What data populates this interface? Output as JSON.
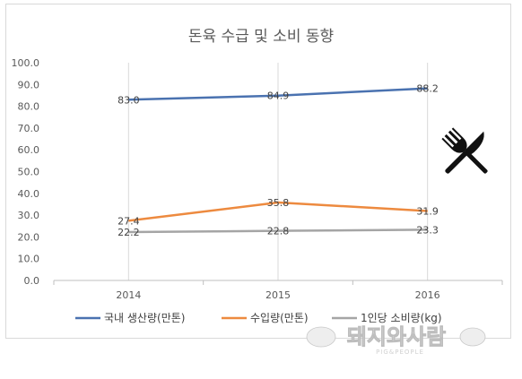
{
  "chart_data": {
    "type": "line",
    "title": "돈육 수급 및 소비 동향",
    "categories": [
      "2014",
      "2015",
      "2016"
    ],
    "ylim": [
      0,
      100
    ],
    "yticks": [
      "0.0",
      "10.0",
      "20.0",
      "30.0",
      "40.0",
      "50.0",
      "60.0",
      "70.0",
      "80.0",
      "90.0",
      "100.0"
    ],
    "grid": "vertical",
    "legend_position": "bottom",
    "series": [
      {
        "name": "국내 생산량(만톤)",
        "color": "#4a72b0",
        "values": [
          83.0,
          84.9,
          88.2
        ],
        "labels": [
          "83.0",
          "84.9",
          "88.2"
        ]
      },
      {
        "name": "수입량(만톤)",
        "color": "#ed8a3f",
        "values": [
          27.4,
          35.8,
          31.9
        ],
        "labels": [
          "27.4",
          "35.8",
          "31.9"
        ]
      },
      {
        "name": "1인당 소비량(kg)",
        "color": "#a5a5a5",
        "values": [
          22.2,
          22.8,
          23.3
        ],
        "labels": [
          "22.2",
          "22.8",
          "23.3"
        ]
      }
    ]
  },
  "icon": "fork-knife-icon",
  "watermark": {
    "text": "돼지와사람",
    "subtext": "PIG&PEOPLE"
  }
}
